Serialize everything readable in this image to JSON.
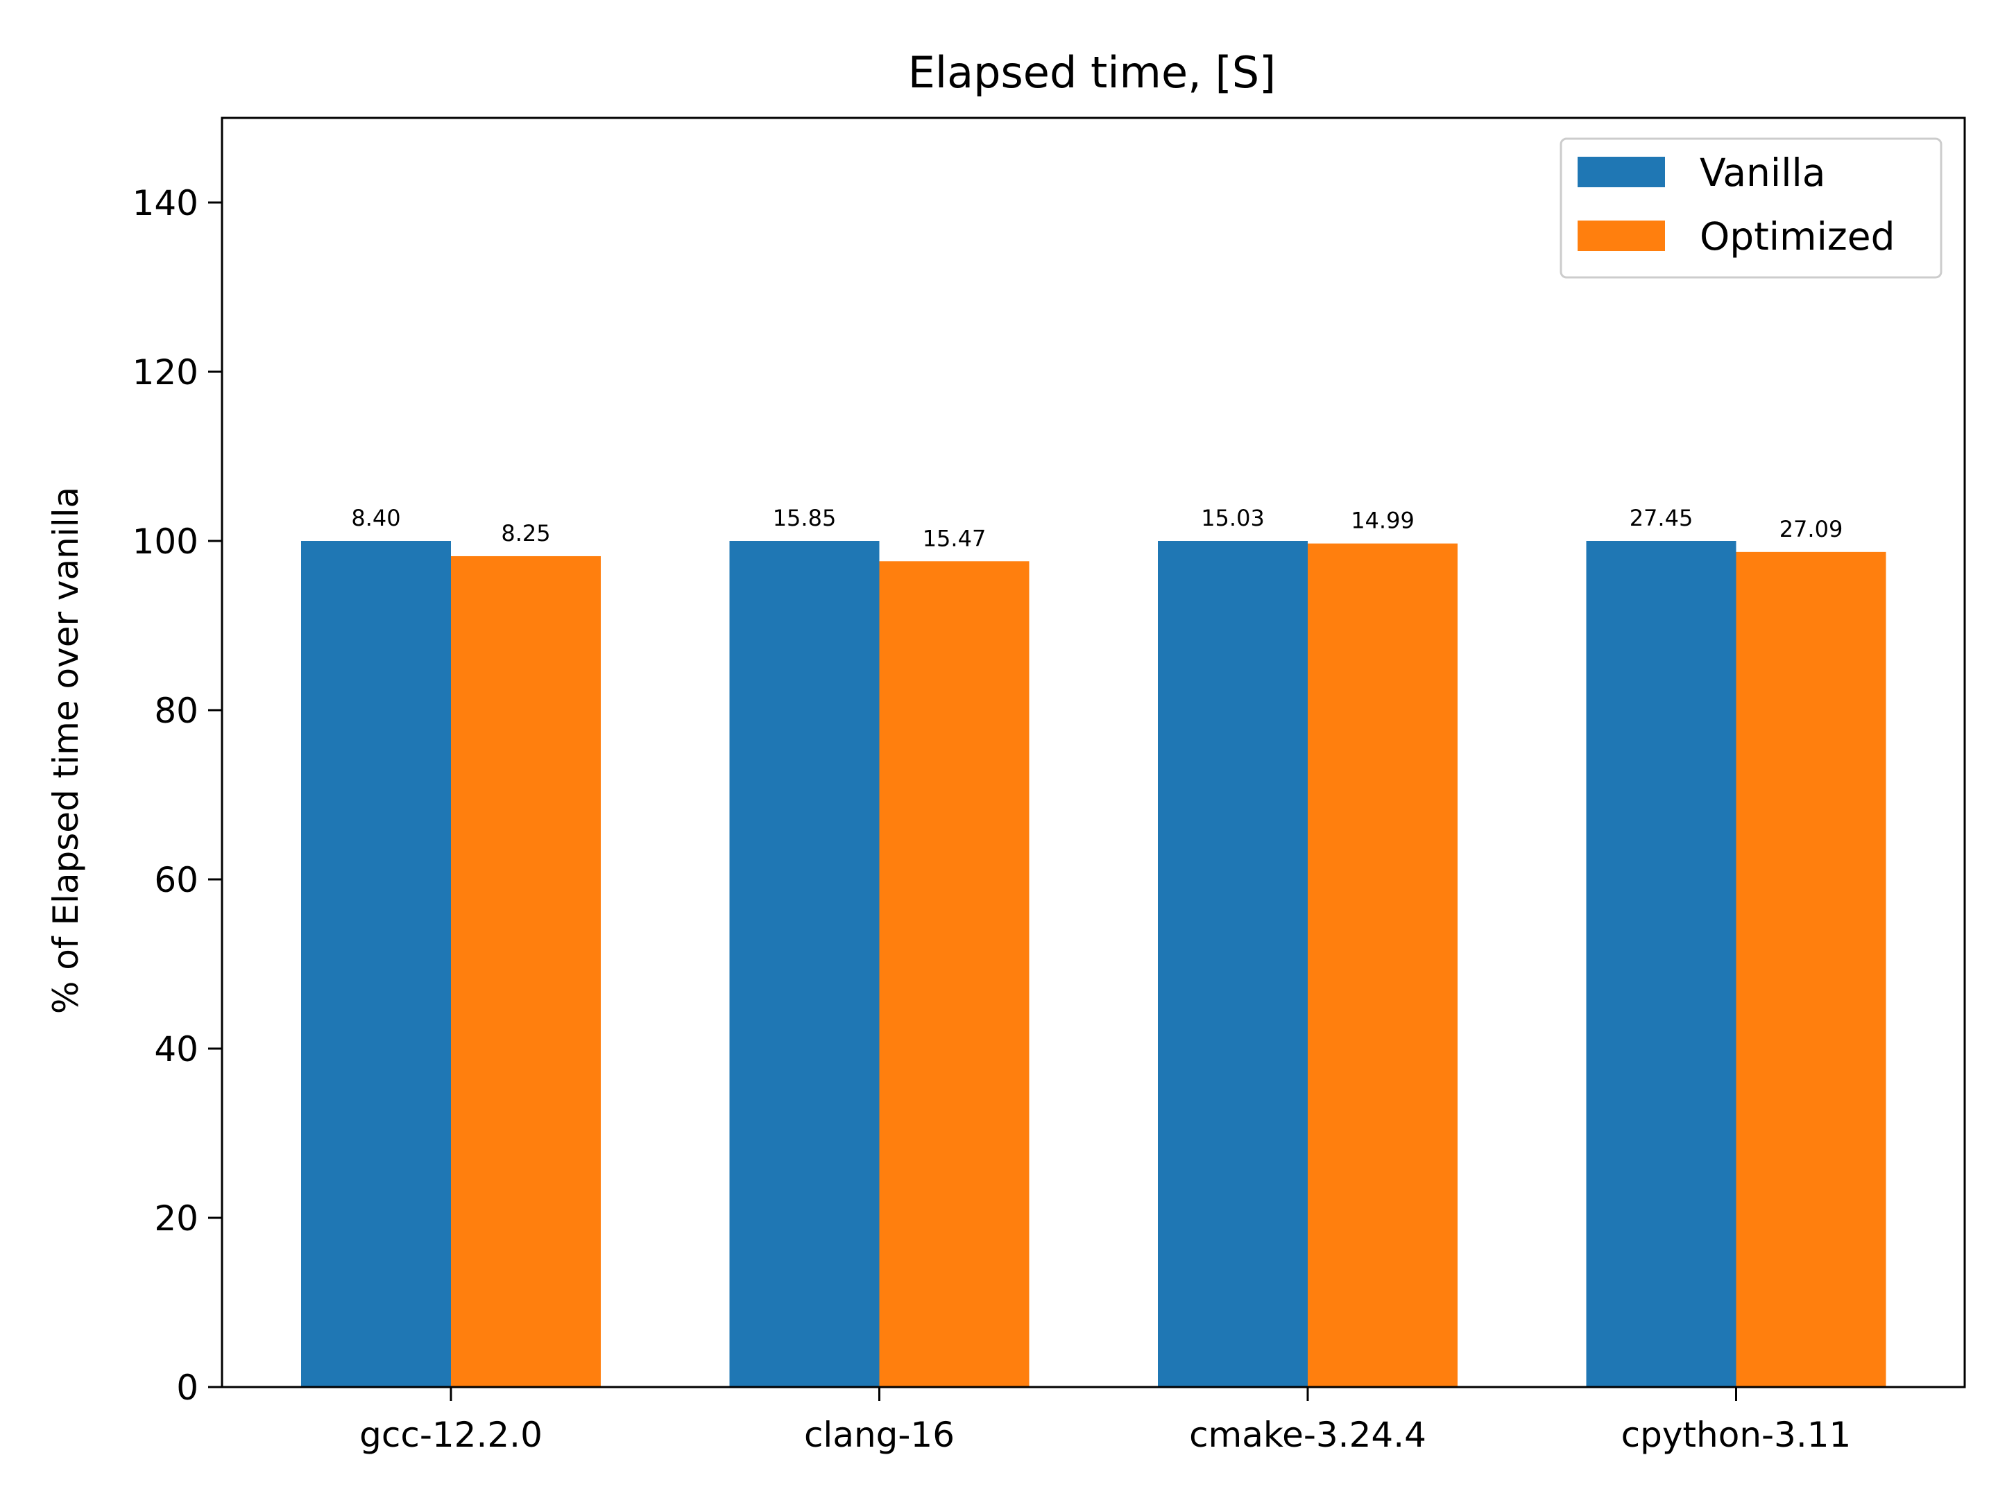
{
  "chart_data": {
    "type": "bar",
    "title": "Elapsed time, [S]",
    "xlabel": "",
    "ylabel": "% of Elapsed time over vanilla",
    "ylim": [
      0,
      150
    ],
    "yticks": [
      0,
      20,
      40,
      60,
      80,
      100,
      120,
      140
    ],
    "categories": [
      "gcc-12.2.0",
      "clang-16",
      "cmake-3.24.4",
      "cpython-3.11"
    ],
    "series": [
      {
        "name": "Vanilla",
        "color": "#1f77b4",
        "values": [
          100,
          100,
          100,
          100
        ],
        "labels": [
          "8.40",
          "15.85",
          "15.03",
          "27.45"
        ]
      },
      {
        "name": "Optimized",
        "color": "#ff7f0e",
        "values": [
          98.2,
          97.6,
          99.7,
          98.7
        ],
        "labels": [
          "8.25",
          "15.47",
          "14.99",
          "27.09"
        ]
      }
    ],
    "legend": "top-right",
    "grid": false
  }
}
